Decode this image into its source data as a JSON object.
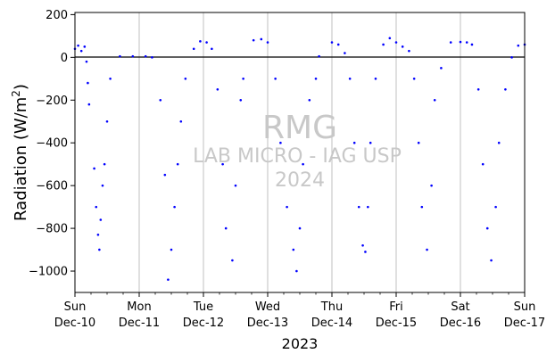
{
  "chart_data": {
    "type": "scatter",
    "title": "",
    "xlabel": "2023",
    "ylabel": "Radiation (W/m²)",
    "ylabel_main": "Radiation (W/m",
    "ylabel_sup": "2",
    "ylabel_tail": ")",
    "ylim": [
      -1100,
      210
    ],
    "xlim_days": [
      0,
      7
    ],
    "x_start_date": "2023-12-10",
    "x_end_date": "2023-12-17",
    "yticks": [
      200,
      0,
      -200,
      -400,
      -600,
      -800,
      -1000
    ],
    "ytick_labels": [
      "200",
      "0",
      "−200",
      "−400",
      "−600",
      "−800",
      "−1000"
    ],
    "xticks": [
      {
        "day": "Sun",
        "date": "Dec-10"
      },
      {
        "day": "Mon",
        "date": "Dec-11"
      },
      {
        "day": "Tue",
        "date": "Dec-12"
      },
      {
        "day": "Wed",
        "date": "Dec-13"
      },
      {
        "day": "Thu",
        "date": "Dec-14"
      },
      {
        "day": "Fri",
        "date": "Dec-15"
      },
      {
        "day": "Sat",
        "date": "Dec-16"
      },
      {
        "day": "Sun",
        "date": "Dec-17"
      }
    ],
    "grid": "vertical",
    "zero_line": true,
    "marker_color": "#0000ff",
    "watermark": [
      "RMG",
      "LAB MICRO - IAG USP",
      "2024"
    ],
    "watermark_color": "#c8c8c8",
    "series": [
      {
        "points": [
          [
            0.0,
            40
          ],
          [
            0.05,
            55
          ],
          [
            0.1,
            30
          ],
          [
            0.15,
            50
          ],
          [
            0.18,
            -20
          ],
          [
            0.2,
            -120
          ],
          [
            0.22,
            -220
          ],
          [
            0.3,
            -520
          ],
          [
            0.33,
            -700
          ],
          [
            0.36,
            -830
          ],
          [
            0.38,
            -900
          ],
          [
            0.4,
            -760
          ],
          [
            0.43,
            -600
          ],
          [
            0.46,
            -500
          ],
          [
            0.5,
            -300
          ],
          [
            0.55,
            -100
          ],
          [
            0.7,
            5
          ],
          [
            0.9,
            5
          ],
          [
            1.1,
            5
          ],
          [
            1.2,
            0
          ],
          [
            1.33,
            -200
          ],
          [
            1.4,
            -550
          ],
          [
            1.45,
            -1040
          ],
          [
            1.5,
            -900
          ],
          [
            1.55,
            -700
          ],
          [
            1.6,
            -500
          ],
          [
            1.65,
            -300
          ],
          [
            1.72,
            -100
          ],
          [
            1.85,
            40
          ],
          [
            1.95,
            75
          ],
          [
            2.05,
            70
          ],
          [
            2.13,
            40
          ],
          [
            2.22,
            -150
          ],
          [
            2.3,
            -500
          ],
          [
            2.35,
            -800
          ],
          [
            2.45,
            -950
          ],
          [
            2.5,
            -600
          ],
          [
            2.58,
            -200
          ],
          [
            2.62,
            -100
          ],
          [
            2.78,
            80
          ],
          [
            2.9,
            85
          ],
          [
            3.0,
            70
          ],
          [
            3.12,
            -100
          ],
          [
            3.2,
            -400
          ],
          [
            3.3,
            -700
          ],
          [
            3.4,
            -900
          ],
          [
            3.45,
            -1000
          ],
          [
            3.5,
            -800
          ],
          [
            3.55,
            -500
          ],
          [
            3.65,
            -200
          ],
          [
            3.75,
            -100
          ],
          [
            3.8,
            5
          ],
          [
            4.0,
            70
          ],
          [
            4.1,
            60
          ],
          [
            4.2,
            20
          ],
          [
            4.28,
            -100
          ],
          [
            4.35,
            -400
          ],
          [
            4.42,
            -700
          ],
          [
            4.48,
            -880
          ],
          [
            4.52,
            -910
          ],
          [
            4.56,
            -700
          ],
          [
            4.6,
            -400
          ],
          [
            4.68,
            -100
          ],
          [
            4.8,
            60
          ],
          [
            4.9,
            90
          ],
          [
            5.0,
            70
          ],
          [
            5.1,
            50
          ],
          [
            5.2,
            30
          ],
          [
            5.28,
            -100
          ],
          [
            5.35,
            -400
          ],
          [
            5.4,
            -700
          ],
          [
            5.48,
            -900
          ],
          [
            5.55,
            -600
          ],
          [
            5.6,
            -200
          ],
          [
            5.7,
            -50
          ],
          [
            5.85,
            70
          ],
          [
            6.0,
            72
          ],
          [
            6.1,
            70
          ],
          [
            6.18,
            60
          ],
          [
            6.28,
            -150
          ],
          [
            6.35,
            -500
          ],
          [
            6.42,
            -800
          ],
          [
            6.48,
            -950
          ],
          [
            6.55,
            -700
          ],
          [
            6.6,
            -400
          ],
          [
            6.7,
            -150
          ],
          [
            6.8,
            0
          ],
          [
            6.9,
            55
          ],
          [
            7.0,
            60
          ]
        ]
      }
    ]
  }
}
